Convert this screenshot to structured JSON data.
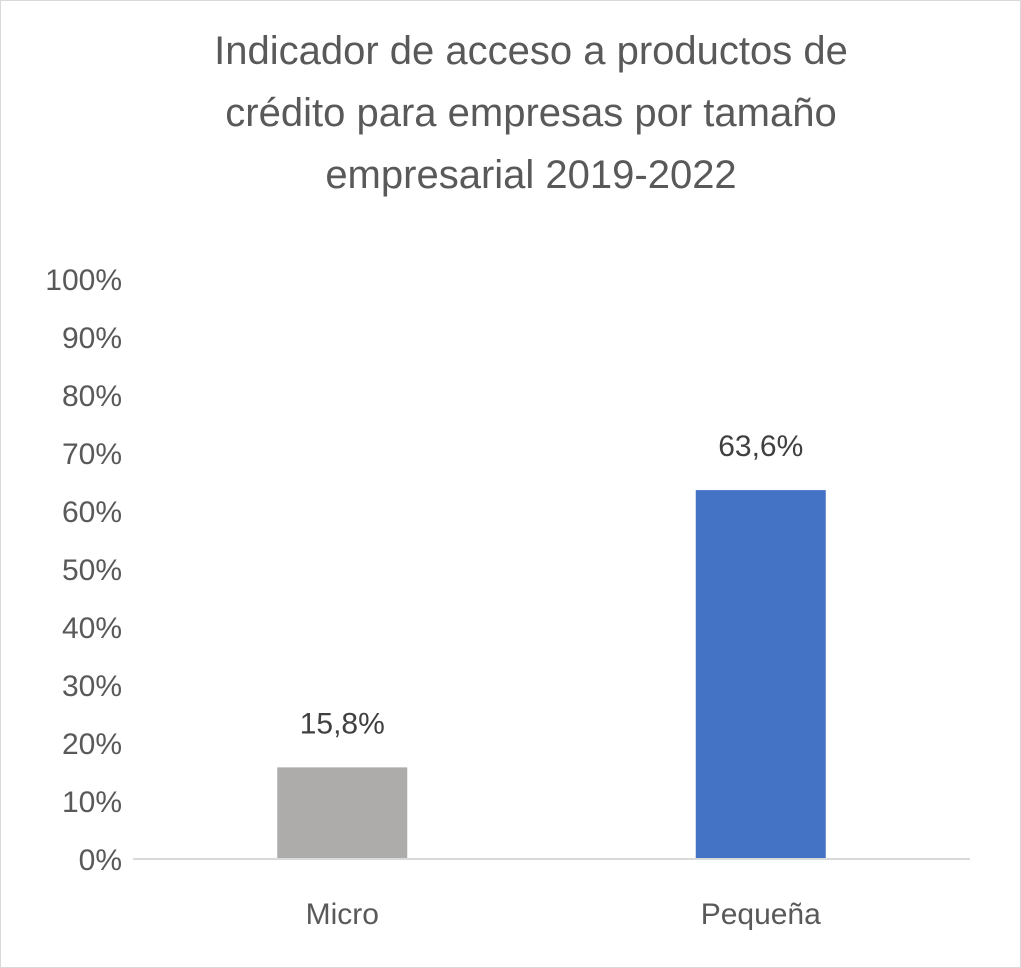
{
  "chart_data": {
    "type": "bar",
    "title_lines": [
      "Indicador de acceso a productos de",
      "crédito para empresas por tamaño",
      "empresarial 2019-2022"
    ],
    "categories": [
      "Micro",
      "Pequeña"
    ],
    "values": [
      15.8,
      63.6
    ],
    "data_labels": [
      "15,8%",
      "63,6%"
    ],
    "colors": [
      "#AEABAB",
      "#4472C4"
    ],
    "ylim": [
      0,
      100
    ],
    "yticks": [
      0,
      10,
      20,
      30,
      40,
      50,
      60,
      70,
      80,
      90,
      100
    ],
    "ytick_labels": [
      "0%",
      "10%",
      "20%",
      "30%",
      "40%",
      "50%",
      "60%",
      "70%",
      "80%",
      "90%",
      "100%"
    ],
    "xlabel": "",
    "ylabel": "",
    "grid": false,
    "legend": "none"
  }
}
